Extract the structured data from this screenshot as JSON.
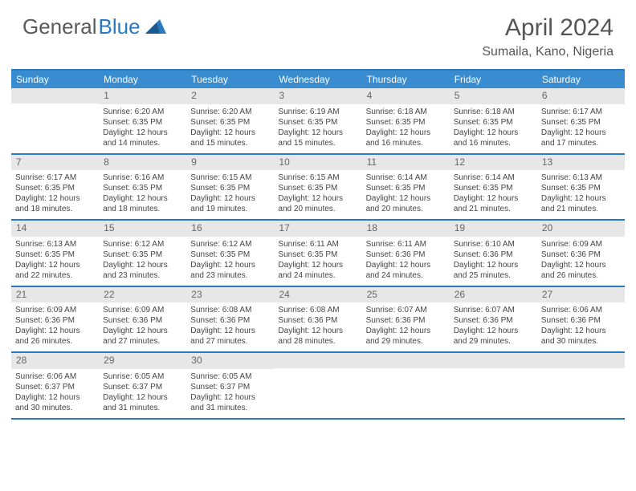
{
  "logo": {
    "text1": "General",
    "text2": "Blue"
  },
  "title": "April 2024",
  "location": "Sumaila, Kano, Nigeria",
  "colors": {
    "headerBlue": "#3a8cd0",
    "borderBlue": "#2a7ac0",
    "dayBarGray": "#e7e7e7",
    "textGray": "#555555"
  },
  "dayNames": [
    "Sunday",
    "Monday",
    "Tuesday",
    "Wednesday",
    "Thursday",
    "Friday",
    "Saturday"
  ],
  "weeks": [
    [
      {
        "n": "",
        "sr": "",
        "ss": "",
        "dl": ""
      },
      {
        "n": "1",
        "sr": "Sunrise: 6:20 AM",
        "ss": "Sunset: 6:35 PM",
        "dl": "Daylight: 12 hours and 14 minutes."
      },
      {
        "n": "2",
        "sr": "Sunrise: 6:20 AM",
        "ss": "Sunset: 6:35 PM",
        "dl": "Daylight: 12 hours and 15 minutes."
      },
      {
        "n": "3",
        "sr": "Sunrise: 6:19 AM",
        "ss": "Sunset: 6:35 PM",
        "dl": "Daylight: 12 hours and 15 minutes."
      },
      {
        "n": "4",
        "sr": "Sunrise: 6:18 AM",
        "ss": "Sunset: 6:35 PM",
        "dl": "Daylight: 12 hours and 16 minutes."
      },
      {
        "n": "5",
        "sr": "Sunrise: 6:18 AM",
        "ss": "Sunset: 6:35 PM",
        "dl": "Daylight: 12 hours and 16 minutes."
      },
      {
        "n": "6",
        "sr": "Sunrise: 6:17 AM",
        "ss": "Sunset: 6:35 PM",
        "dl": "Daylight: 12 hours and 17 minutes."
      }
    ],
    [
      {
        "n": "7",
        "sr": "Sunrise: 6:17 AM",
        "ss": "Sunset: 6:35 PM",
        "dl": "Daylight: 12 hours and 18 minutes."
      },
      {
        "n": "8",
        "sr": "Sunrise: 6:16 AM",
        "ss": "Sunset: 6:35 PM",
        "dl": "Daylight: 12 hours and 18 minutes."
      },
      {
        "n": "9",
        "sr": "Sunrise: 6:15 AM",
        "ss": "Sunset: 6:35 PM",
        "dl": "Daylight: 12 hours and 19 minutes."
      },
      {
        "n": "10",
        "sr": "Sunrise: 6:15 AM",
        "ss": "Sunset: 6:35 PM",
        "dl": "Daylight: 12 hours and 20 minutes."
      },
      {
        "n": "11",
        "sr": "Sunrise: 6:14 AM",
        "ss": "Sunset: 6:35 PM",
        "dl": "Daylight: 12 hours and 20 minutes."
      },
      {
        "n": "12",
        "sr": "Sunrise: 6:14 AM",
        "ss": "Sunset: 6:35 PM",
        "dl": "Daylight: 12 hours and 21 minutes."
      },
      {
        "n": "13",
        "sr": "Sunrise: 6:13 AM",
        "ss": "Sunset: 6:35 PM",
        "dl": "Daylight: 12 hours and 21 minutes."
      }
    ],
    [
      {
        "n": "14",
        "sr": "Sunrise: 6:13 AM",
        "ss": "Sunset: 6:35 PM",
        "dl": "Daylight: 12 hours and 22 minutes."
      },
      {
        "n": "15",
        "sr": "Sunrise: 6:12 AM",
        "ss": "Sunset: 6:35 PM",
        "dl": "Daylight: 12 hours and 23 minutes."
      },
      {
        "n": "16",
        "sr": "Sunrise: 6:12 AM",
        "ss": "Sunset: 6:35 PM",
        "dl": "Daylight: 12 hours and 23 minutes."
      },
      {
        "n": "17",
        "sr": "Sunrise: 6:11 AM",
        "ss": "Sunset: 6:35 PM",
        "dl": "Daylight: 12 hours and 24 minutes."
      },
      {
        "n": "18",
        "sr": "Sunrise: 6:11 AM",
        "ss": "Sunset: 6:36 PM",
        "dl": "Daylight: 12 hours and 24 minutes."
      },
      {
        "n": "19",
        "sr": "Sunrise: 6:10 AM",
        "ss": "Sunset: 6:36 PM",
        "dl": "Daylight: 12 hours and 25 minutes."
      },
      {
        "n": "20",
        "sr": "Sunrise: 6:09 AM",
        "ss": "Sunset: 6:36 PM",
        "dl": "Daylight: 12 hours and 26 minutes."
      }
    ],
    [
      {
        "n": "21",
        "sr": "Sunrise: 6:09 AM",
        "ss": "Sunset: 6:36 PM",
        "dl": "Daylight: 12 hours and 26 minutes."
      },
      {
        "n": "22",
        "sr": "Sunrise: 6:09 AM",
        "ss": "Sunset: 6:36 PM",
        "dl": "Daylight: 12 hours and 27 minutes."
      },
      {
        "n": "23",
        "sr": "Sunrise: 6:08 AM",
        "ss": "Sunset: 6:36 PM",
        "dl": "Daylight: 12 hours and 27 minutes."
      },
      {
        "n": "24",
        "sr": "Sunrise: 6:08 AM",
        "ss": "Sunset: 6:36 PM",
        "dl": "Daylight: 12 hours and 28 minutes."
      },
      {
        "n": "25",
        "sr": "Sunrise: 6:07 AM",
        "ss": "Sunset: 6:36 PM",
        "dl": "Daylight: 12 hours and 29 minutes."
      },
      {
        "n": "26",
        "sr": "Sunrise: 6:07 AM",
        "ss": "Sunset: 6:36 PM",
        "dl": "Daylight: 12 hours and 29 minutes."
      },
      {
        "n": "27",
        "sr": "Sunrise: 6:06 AM",
        "ss": "Sunset: 6:36 PM",
        "dl": "Daylight: 12 hours and 30 minutes."
      }
    ],
    [
      {
        "n": "28",
        "sr": "Sunrise: 6:06 AM",
        "ss": "Sunset: 6:37 PM",
        "dl": "Daylight: 12 hours and 30 minutes."
      },
      {
        "n": "29",
        "sr": "Sunrise: 6:05 AM",
        "ss": "Sunset: 6:37 PM",
        "dl": "Daylight: 12 hours and 31 minutes."
      },
      {
        "n": "30",
        "sr": "Sunrise: 6:05 AM",
        "ss": "Sunset: 6:37 PM",
        "dl": "Daylight: 12 hours and 31 minutes."
      },
      {
        "n": "",
        "sr": "",
        "ss": "",
        "dl": ""
      },
      {
        "n": "",
        "sr": "",
        "ss": "",
        "dl": ""
      },
      {
        "n": "",
        "sr": "",
        "ss": "",
        "dl": ""
      },
      {
        "n": "",
        "sr": "",
        "ss": "",
        "dl": ""
      }
    ]
  ]
}
